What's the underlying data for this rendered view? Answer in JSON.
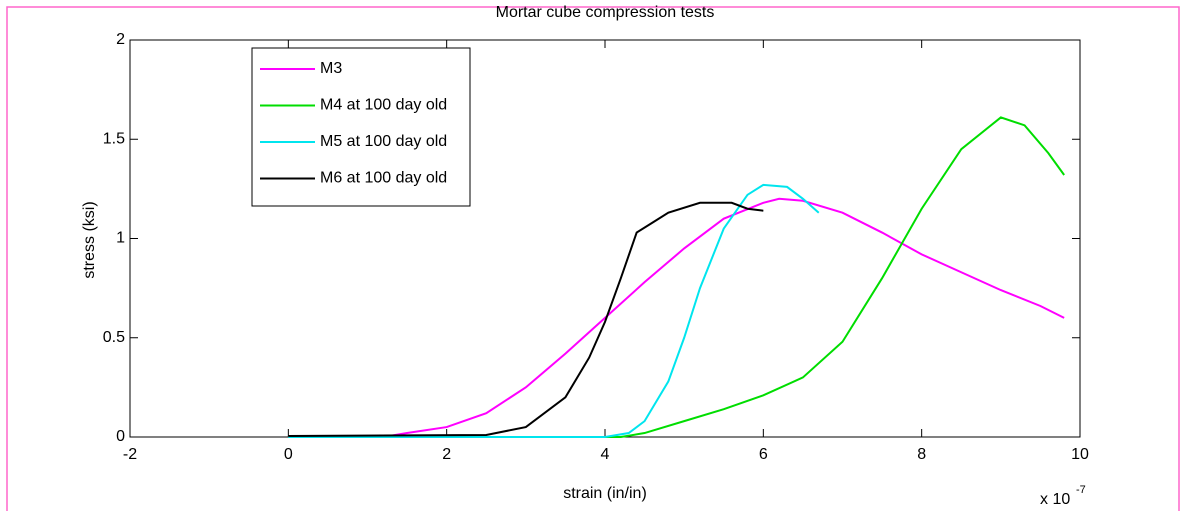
{
  "chart_data": {
    "type": "line",
    "title": "Mortar cube compression tests",
    "xlabel": "strain (in/in)",
    "ylabel": "stress (ksi)",
    "x_multiplier": "x 10",
    "x_exponent": "-7",
    "xlim": [
      -2,
      10
    ],
    "xticks": [
      -2,
      0,
      2,
      4,
      6,
      8,
      10
    ],
    "ylim": [
      0,
      2
    ],
    "yticks": [
      0,
      0.5,
      1,
      1.5,
      2
    ],
    "grid": false,
    "legend": "upper left",
    "series": [
      {
        "name": "M3",
        "color": "#ff00ff",
        "x": [
          0,
          1.2,
          1.5,
          2,
          2.5,
          3,
          3.5,
          4,
          4.5,
          5,
          5.5,
          6,
          6.2,
          6.5,
          7,
          7.5,
          8,
          8.5,
          9,
          9.5,
          9.8
        ],
        "values": [
          0,
          0,
          0.02,
          0.05,
          0.12,
          0.25,
          0.42,
          0.6,
          0.78,
          0.95,
          1.1,
          1.18,
          1.2,
          1.19,
          1.13,
          1.03,
          0.92,
          0.83,
          0.74,
          0.66,
          0.6
        ]
      },
      {
        "name": "M4 at 100 day old",
        "color": "#00dd00",
        "x": [
          0,
          4.2,
          4.5,
          5,
          5.5,
          6,
          6.5,
          7,
          7.5,
          8,
          8.5,
          9,
          9.3,
          9.6,
          9.8
        ],
        "values": [
          0,
          0,
          0.02,
          0.08,
          0.14,
          0.21,
          0.3,
          0.48,
          0.8,
          1.15,
          1.45,
          1.61,
          1.57,
          1.43,
          1.32
        ]
      },
      {
        "name": "M5 at 100 day old",
        "color": "#00e5ee",
        "x": [
          0,
          4,
          4.3,
          4.5,
          4.8,
          5,
          5.2,
          5.5,
          5.8,
          6,
          6.3,
          6.5,
          6.7
        ],
        "values": [
          0,
          0,
          0.02,
          0.08,
          0.28,
          0.5,
          0.75,
          1.05,
          1.22,
          1.27,
          1.26,
          1.2,
          1.13
        ]
      },
      {
        "name": "M6 at 100 day old",
        "color": "#000000",
        "x": [
          0,
          2.5,
          3,
          3.5,
          3.8,
          4,
          4.2,
          4.4,
          4.6,
          4.8,
          5.2,
          5.6,
          5.8,
          6
        ],
        "values": [
          0.005,
          0.01,
          0.05,
          0.2,
          0.4,
          0.58,
          0.8,
          1.03,
          1.08,
          1.13,
          1.18,
          1.18,
          1.15,
          1.14
        ]
      }
    ]
  }
}
